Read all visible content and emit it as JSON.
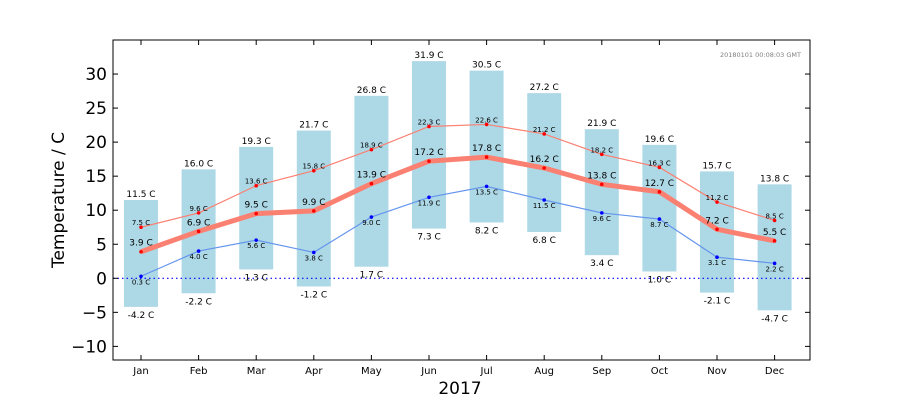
{
  "chart_data": {
    "type": "bar",
    "xlabel": "2017",
    "ylabel": "Temperature / C",
    "timestamp": "20180101 00:08:03 GMT",
    "unit_suffix": " C",
    "ylim": [
      -12,
      35
    ],
    "yticks": [
      -10,
      -5,
      0,
      5,
      10,
      15,
      20,
      25,
      30
    ],
    "grid": false,
    "zero_line": true,
    "categories": [
      "Jan",
      "Feb",
      "Mar",
      "Apr",
      "May",
      "Jun",
      "Jul",
      "Aug",
      "Sep",
      "Oct",
      "Nov",
      "Dec"
    ],
    "series": [
      {
        "key": "max",
        "values": [
          11.5,
          16.0,
          19.3,
          21.7,
          26.8,
          31.9,
          30.5,
          27.2,
          21.9,
          19.6,
          15.7,
          13.8
        ]
      },
      {
        "key": "min",
        "values": [
          -4.2,
          -2.2,
          1.3,
          -1.2,
          1.7,
          7.3,
          8.2,
          6.8,
          3.4,
          1.0,
          -2.1,
          -4.7
        ]
      },
      {
        "key": "mean",
        "values": [
          3.9,
          6.9,
          9.5,
          9.9,
          13.9,
          17.2,
          17.8,
          16.2,
          13.8,
          12.7,
          7.2,
          5.5
        ]
      },
      {
        "key": "mean_high",
        "values": [
          7.5,
          9.6,
          13.6,
          15.8,
          18.9,
          22.3,
          22.6,
          21.2,
          18.2,
          16.3,
          11.2,
          8.5
        ]
      },
      {
        "key": "mean_low",
        "values": [
          0.3,
          4.0,
          5.6,
          3.8,
          9.0,
          11.9,
          13.5,
          11.5,
          9.6,
          8.7,
          3.1,
          2.2
        ]
      }
    ],
    "colors": {
      "range_bar": "#add8e6",
      "mean": "#fa8072",
      "mean_high": "#fa8072",
      "mean_high_marker": "#ff0000",
      "mean_low": "#6495ed",
      "mean_low_marker": "#0000ff",
      "zero_line": "#0000ff"
    }
  }
}
